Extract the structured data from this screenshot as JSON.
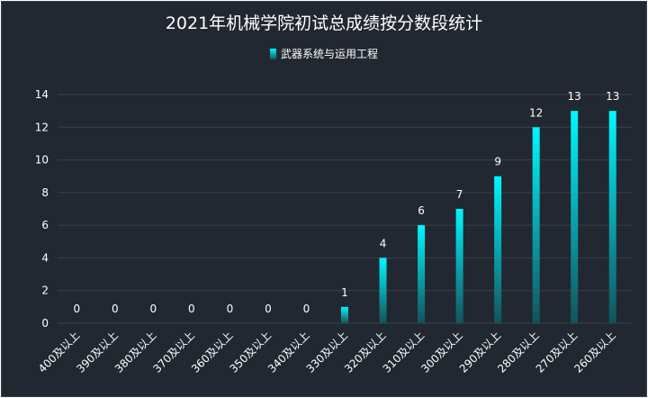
{
  "chart_data": {
    "type": "bar",
    "title": "2021年机械学院初试总成绩按分数段统计",
    "legend": "武器系统与运用工程",
    "legend_position": "top-center",
    "categories": [
      "400及以上",
      "390及以上",
      "380及以上",
      "370及以上",
      "360及以上",
      "350及以上",
      "340及以上",
      "330及以上",
      "320及以上",
      "310及以上",
      "300及以上",
      "290及以上",
      "280及以上",
      "270及以上",
      "260及以上"
    ],
    "series": [
      {
        "name": "武器系统与运用工程",
        "values": [
          0,
          0,
          0,
          0,
          0,
          0,
          0,
          1,
          4,
          6,
          7,
          9,
          12,
          13,
          13
        ]
      }
    ],
    "ylim": [
      0,
      14
    ],
    "yticks": [
      0,
      2,
      4,
      6,
      8,
      10,
      12,
      14
    ],
    "grid": true,
    "colors": {
      "background": "#222831",
      "bar_top": "#00f7ff",
      "bar_bottom": "#12535c",
      "grid": "#3a4048",
      "text": "#ffffff"
    }
  }
}
